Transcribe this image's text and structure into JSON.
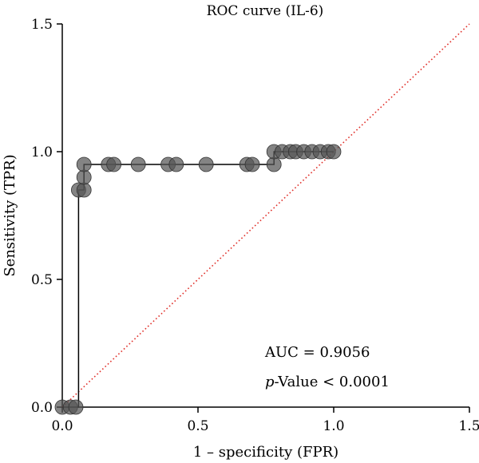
{
  "chart_data": {
    "type": "line",
    "title": "ROC curve (IL-6)",
    "xlabel": "1 – specificity (FPR)",
    "ylabel": "Sensitivity (TPR)",
    "xlim": [
      0,
      1.5
    ],
    "ylim": [
      0,
      1.5
    ],
    "xticks": [
      0.0,
      0.5,
      1.0,
      1.5
    ],
    "yticks": [
      0.0,
      0.5,
      1.0,
      1.5
    ],
    "xtick_labels": [
      "0.0",
      "0.5",
      "1.0",
      "1.5"
    ],
    "ytick_labels": [
      "0.0",
      "0.5",
      "1.0",
      "1.5"
    ],
    "grid": false,
    "annotations": {
      "auc": "AUC = 0.9056",
      "p_prefix": "p",
      "p_rest": "-Value < 0.0001"
    },
    "colors": {
      "curve": "#000000",
      "points": "#555555",
      "reference": "#e0302a"
    },
    "series": [
      {
        "style": "step-line",
        "x": [
          0.0,
          0.0,
          0.06,
          0.06,
          0.08,
          0.08,
          0.78,
          0.78,
          1.0
        ],
        "y": [
          0.0,
          0.0,
          0.0,
          0.85,
          0.85,
          0.95,
          0.95,
          1.0,
          1.0
        ]
      },
      {
        "style": "markers",
        "points": [
          [
            0.0,
            0.0
          ],
          [
            0.03,
            0.0
          ],
          [
            0.05,
            0.0
          ],
          [
            0.06,
            0.85
          ],
          [
            0.08,
            0.85
          ],
          [
            0.08,
            0.9
          ],
          [
            0.08,
            0.95
          ],
          [
            0.17,
            0.95
          ],
          [
            0.19,
            0.95
          ],
          [
            0.28,
            0.95
          ],
          [
            0.39,
            0.95
          ],
          [
            0.42,
            0.95
          ],
          [
            0.53,
            0.95
          ],
          [
            0.68,
            0.95
          ],
          [
            0.7,
            0.95
          ],
          [
            0.78,
            0.95
          ],
          [
            0.78,
            1.0
          ],
          [
            0.81,
            1.0
          ],
          [
            0.84,
            1.0
          ],
          [
            0.86,
            1.0
          ],
          [
            0.89,
            1.0
          ],
          [
            0.92,
            1.0
          ],
          [
            0.95,
            1.0
          ],
          [
            0.98,
            1.0
          ],
          [
            1.0,
            1.0
          ]
        ]
      },
      {
        "style": "reference-diagonal",
        "x": [
          0,
          1.5
        ],
        "y": [
          0,
          1.5
        ]
      }
    ]
  }
}
